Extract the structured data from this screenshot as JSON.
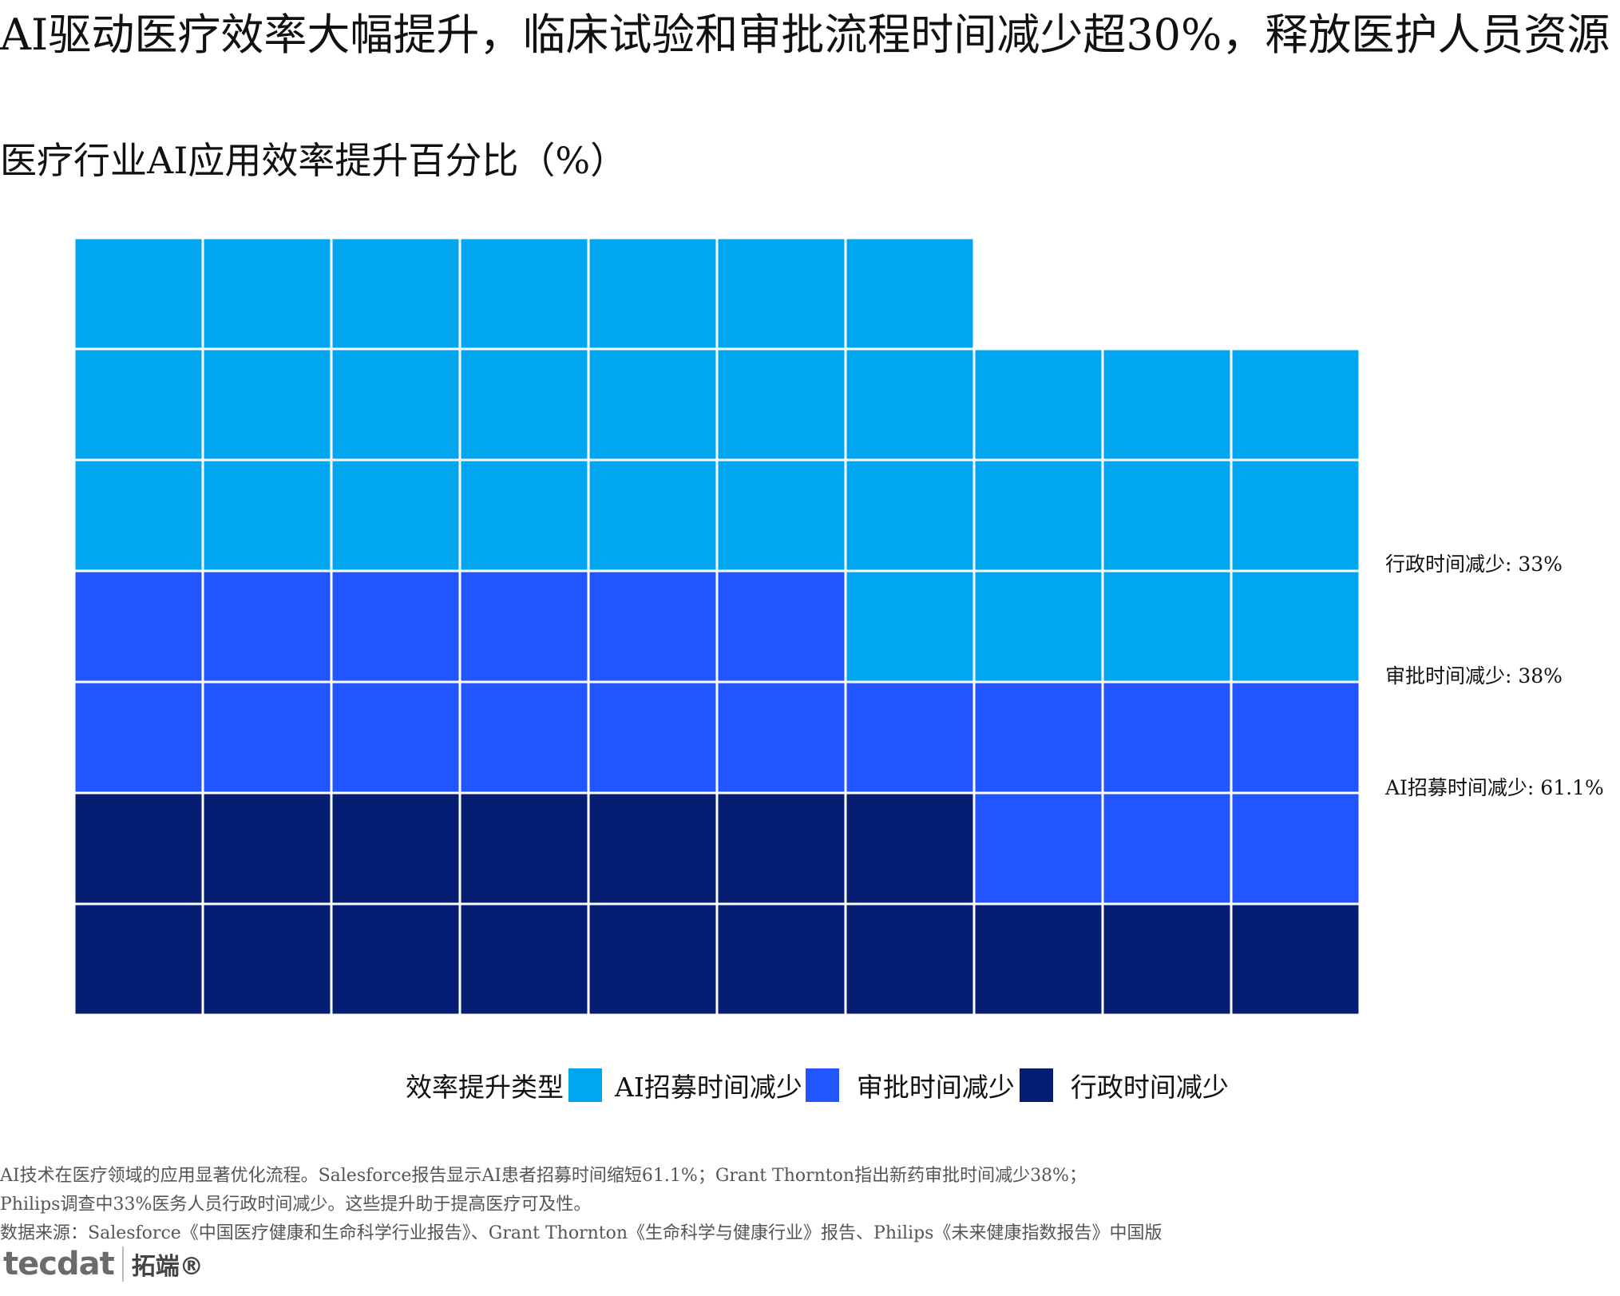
{
  "title": "AI驱动医疗效率大幅提升，临床试验和审批流程时间减少超30%，释放医护人员资源",
  "subtitle": "医疗行业AI应用效率提升百分比（%）",
  "colors": {
    "ai_recruit": "#00a7f0",
    "approval": "#2255ff",
    "admin": "#061d74"
  },
  "chart_data": {
    "type": "waffle",
    "series": [
      {
        "name": "AI招募时间减少",
        "value": 61.1,
        "label": "AI招募时间减少: 61.1%"
      },
      {
        "name": "审批时间减少",
        "value": 38,
        "label": "审批时间减少: 38%"
      },
      {
        "name": "行政时间减少",
        "value": 33,
        "label": "行政时间减少: 33%"
      }
    ],
    "legend": {
      "title": "效率提升类型",
      "position": "bottom"
    }
  },
  "legend": {
    "title": "效率提升类型",
    "items": [
      "AI招募时间减少",
      "审批时间减少",
      "行政时间减少"
    ]
  },
  "side_labels": {
    "admin": "行政时间减少: 33%",
    "approval": "审批时间减少: 38%",
    "ai": "AI招募时间减少: 61.1%"
  },
  "footnote": {
    "line1": "AI技术在医疗领域的应用显著优化流程。Salesforce报告显示AI患者招募时间缩短61.1%；Grant Thornton指出新药审批时间减少38%；",
    "line2": "Philips调查中33%医务人员行政时间减少。这些提升助于提高医疗可及性。",
    "line3": "数据来源：Salesforce《中国医疗健康和生命科学行业报告》、Grant Thornton《生命科学与健康行业》报告、Philips《未来健康指数报告》中国版"
  },
  "logo": {
    "left": "tecdat",
    "right": "拓端®"
  }
}
